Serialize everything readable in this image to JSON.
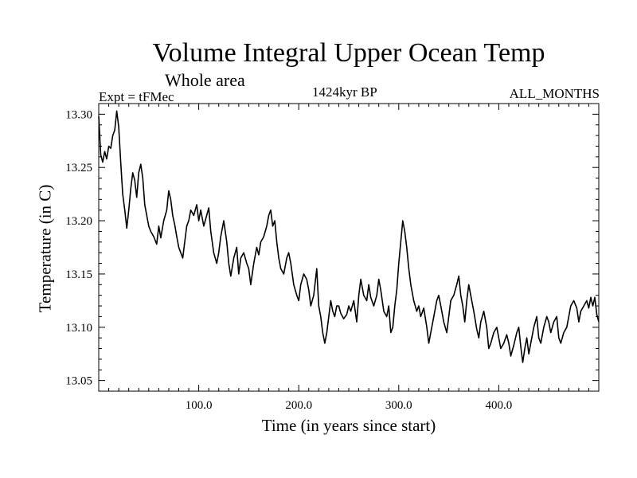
{
  "chart_data": {
    "type": "line",
    "title": "Volume Integral Upper Ocean Temp",
    "subtitle": "Whole area",
    "annotations": {
      "experiment": "Expt = tFMec",
      "period": "1424kyr BP",
      "months": "ALL_MONTHS"
    },
    "xlabel": "Time (in years since start)",
    "ylabel": "Temperature (in C)",
    "xlim": [
      0,
      500
    ],
    "ylim": [
      13.04,
      13.31
    ],
    "xticks": [
      100,
      200,
      300,
      400
    ],
    "xtick_labels": [
      "100.0",
      "200.0",
      "300.0",
      "400.0"
    ],
    "yticks": [
      13.05,
      13.1,
      13.15,
      13.2,
      13.25,
      13.3
    ],
    "ytick_labels": [
      "13.05",
      "13.10",
      "13.15",
      "13.20",
      "13.25",
      "13.30"
    ],
    "grid": false,
    "series": [
      {
        "name": "Temperature",
        "color": "#000000",
        "x": [
          0,
          2,
          4,
          6,
          8,
          10,
          12,
          14,
          16,
          18,
          20,
          22,
          24,
          26,
          28,
          30,
          32,
          34,
          36,
          38,
          40,
          42,
          44,
          46,
          48,
          50,
          52,
          55,
          58,
          60,
          62,
          65,
          68,
          70,
          72,
          74,
          76,
          78,
          80,
          82,
          84,
          86,
          88,
          90,
          92,
          95,
          98,
          100,
          102,
          105,
          108,
          110,
          112,
          115,
          118,
          120,
          122,
          125,
          128,
          130,
          132,
          135,
          138,
          140,
          142,
          145,
          148,
          150,
          152,
          155,
          158,
          160,
          162,
          165,
          168,
          170,
          172,
          174,
          176,
          178,
          180,
          182,
          185,
          188,
          190,
          192,
          195,
          198,
          200,
          202,
          205,
          208,
          210,
          212,
          215,
          218,
          220,
          222,
          224,
          226,
          228,
          230,
          232,
          234,
          236,
          238,
          240,
          242,
          245,
          248,
          250,
          252,
          255,
          258,
          260,
          262,
          265,
          268,
          270,
          272,
          275,
          278,
          280,
          282,
          285,
          288,
          290,
          292,
          294,
          296,
          298,
          300,
          302,
          304,
          306,
          308,
          310,
          312,
          315,
          318,
          320,
          322,
          325,
          328,
          330,
          332,
          335,
          338,
          340,
          342,
          345,
          348,
          350,
          352,
          355,
          358,
          360,
          362,
          364,
          366,
          368,
          370,
          372,
          375,
          378,
          380,
          382,
          385,
          388,
          390,
          392,
          395,
          398,
          400,
          402,
          405,
          408,
          410,
          412,
          415,
          418,
          420,
          422,
          424,
          426,
          428,
          430,
          432,
          435,
          438,
          440,
          442,
          445,
          448,
          450,
          452,
          455,
          458,
          460,
          462,
          465,
          468,
          470,
          472,
          475,
          478,
          480,
          482,
          485,
          488,
          490,
          492,
          494,
          496,
          498,
          500
        ],
        "values": [
          13.298,
          13.262,
          13.255,
          13.265,
          13.258,
          13.27,
          13.268,
          13.28,
          13.285,
          13.303,
          13.288,
          13.255,
          13.225,
          13.21,
          13.193,
          13.21,
          13.23,
          13.245,
          13.238,
          13.222,
          13.245,
          13.253,
          13.24,
          13.215,
          13.205,
          13.195,
          13.19,
          13.185,
          13.178,
          13.195,
          13.184,
          13.2,
          13.21,
          13.228,
          13.22,
          13.205,
          13.196,
          13.185,
          13.175,
          13.17,
          13.165,
          13.18,
          13.195,
          13.2,
          13.21,
          13.205,
          13.215,
          13.2,
          13.21,
          13.195,
          13.205,
          13.212,
          13.19,
          13.17,
          13.16,
          13.17,
          13.185,
          13.2,
          13.18,
          13.16,
          13.148,
          13.165,
          13.175,
          13.15,
          13.165,
          13.17,
          13.16,
          13.155,
          13.14,
          13.16,
          13.175,
          13.168,
          13.18,
          13.185,
          13.195,
          13.205,
          13.21,
          13.195,
          13.2,
          13.18,
          13.165,
          13.155,
          13.15,
          13.165,
          13.17,
          13.16,
          13.14,
          13.13,
          13.125,
          13.14,
          13.15,
          13.145,
          13.135,
          13.12,
          13.13,
          13.155,
          13.12,
          13.11,
          13.095,
          13.085,
          13.095,
          13.11,
          13.125,
          13.115,
          13.11,
          13.12,
          13.12,
          13.113,
          13.108,
          13.112,
          13.12,
          13.115,
          13.125,
          13.105,
          13.13,
          13.145,
          13.13,
          13.125,
          13.14,
          13.128,
          13.12,
          13.13,
          13.145,
          13.135,
          13.115,
          13.11,
          13.12,
          13.095,
          13.1,
          13.12,
          13.135,
          13.16,
          13.18,
          13.2,
          13.19,
          13.175,
          13.155,
          13.14,
          13.125,
          13.115,
          13.12,
          13.11,
          13.118,
          13.1,
          13.085,
          13.095,
          13.11,
          13.125,
          13.13,
          13.12,
          13.105,
          13.095,
          13.11,
          13.125,
          13.13,
          13.14,
          13.148,
          13.13,
          13.12,
          13.105,
          13.125,
          13.14,
          13.13,
          13.115,
          13.098,
          13.09,
          13.105,
          13.115,
          13.1,
          13.08,
          13.085,
          13.095,
          13.1,
          13.09,
          13.08,
          13.085,
          13.093,
          13.085,
          13.073,
          13.083,
          13.095,
          13.1,
          13.082,
          13.067,
          13.08,
          13.09,
          13.075,
          13.085,
          13.1,
          13.11,
          13.09,
          13.085,
          13.1,
          13.11,
          13.105,
          13.095,
          13.105,
          13.11,
          13.09,
          13.085,
          13.095,
          13.1,
          13.11,
          13.12,
          13.125,
          13.118,
          13.105,
          13.115,
          13.12,
          13.125,
          13.118,
          13.128,
          13.12,
          13.128,
          13.112,
          13.105
        ]
      }
    ]
  }
}
